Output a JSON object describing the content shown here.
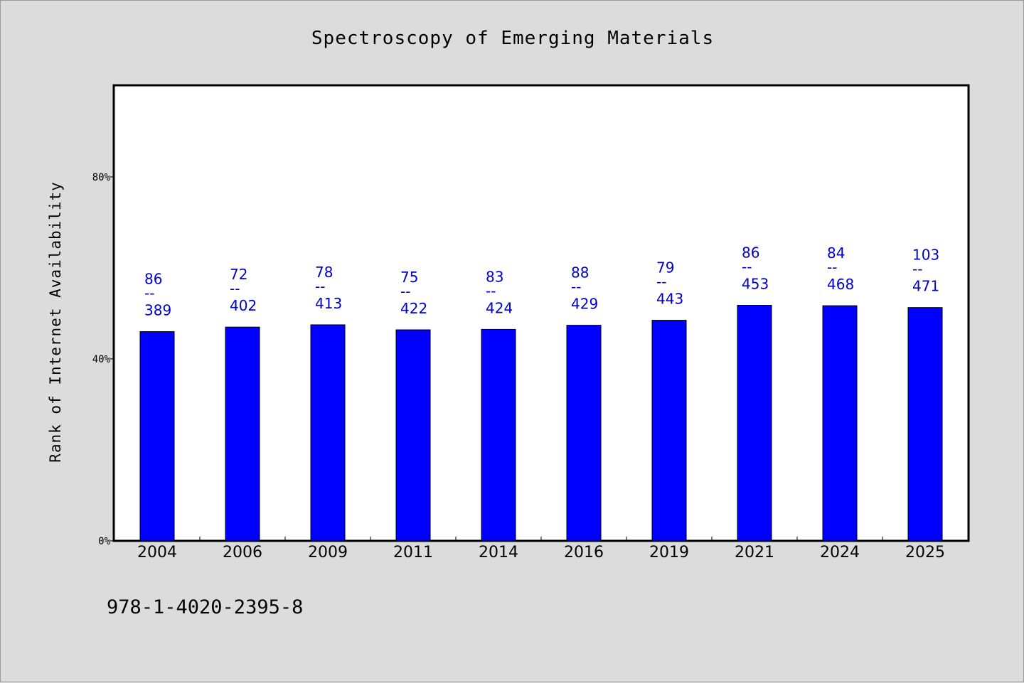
{
  "chart_data": {
    "type": "bar",
    "title": "Spectroscopy of Emerging Materials",
    "ylabel": "Rank of Internet Availability",
    "xlabel": "",
    "ylim": [
      0,
      100
    ],
    "yticks": [
      {
        "value": 0,
        "label": "0%"
      },
      {
        "value": 40,
        "label": "40%"
      },
      {
        "value": 80,
        "label": "80%"
      }
    ],
    "categories": [
      "2004",
      "2006",
      "2009",
      "2011",
      "2014",
      "2016",
      "2019",
      "2021",
      "2024",
      "2025"
    ],
    "values": [
      46,
      47,
      47.5,
      46.4,
      46.5,
      47.4,
      48.5,
      51.8,
      51.7,
      51.3
    ],
    "labels": [
      {
        "top": "86",
        "sep": "--",
        "bottom": "389"
      },
      {
        "top": "72",
        "sep": "--",
        "bottom": "402"
      },
      {
        "top": "78",
        "sep": "--",
        "bottom": "413"
      },
      {
        "top": "75",
        "sep": "--",
        "bottom": "422"
      },
      {
        "top": "83",
        "sep": "--",
        "bottom": "424"
      },
      {
        "top": "88",
        "sep": "--",
        "bottom": "429"
      },
      {
        "top": "79",
        "sep": "--",
        "bottom": "443"
      },
      {
        "top": "86",
        "sep": "--",
        "bottom": "453"
      },
      {
        "top": "84",
        "sep": "--",
        "bottom": "468"
      },
      {
        "top": "103",
        "sep": "--",
        "bottom": "471"
      }
    ],
    "bar_color": "#0000ff",
    "label_color": "#0000cc",
    "grid": false,
    "legend": "none"
  },
  "footer": {
    "isbn": "978-1-4020-2395-8"
  },
  "colors": {
    "background": "#dcdcdc",
    "plot_background": "#ffffff"
  }
}
